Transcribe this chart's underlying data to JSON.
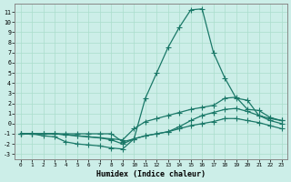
{
  "xlabel": "Humidex (Indice chaleur)",
  "background_color": "#cceee8",
  "grid_color": "#aaddcc",
  "line_color": "#1a7868",
  "xlim": [
    -0.5,
    23.5
  ],
  "ylim": [
    -3.5,
    11.8
  ],
  "xticks": [
    0,
    1,
    2,
    3,
    4,
    5,
    6,
    7,
    8,
    9,
    10,
    11,
    12,
    13,
    14,
    15,
    16,
    17,
    18,
    19,
    20,
    21,
    22,
    23
  ],
  "yticks": [
    -3,
    -2,
    -1,
    0,
    1,
    2,
    3,
    4,
    5,
    6,
    7,
    8,
    9,
    10,
    11
  ],
  "line1_x": [
    0,
    1,
    2,
    3,
    4,
    5,
    6,
    7,
    8,
    9,
    10,
    11,
    12,
    13,
    14,
    15,
    16,
    17,
    18,
    19,
    20,
    21,
    22,
    23
  ],
  "line1_y": [
    -1,
    -1,
    -1.2,
    -1.3,
    -1.8,
    -2.0,
    -2.1,
    -2.2,
    -2.4,
    -2.5,
    -1.5,
    2.5,
    5,
    7.5,
    9.5,
    11.2,
    11.3,
    7,
    4.5,
    2.5,
    2.3,
    0.8,
    0.5,
    0.3
  ],
  "line2_x": [
    0,
    1,
    2,
    3,
    4,
    5,
    6,
    7,
    8,
    9,
    10,
    11,
    12,
    13,
    14,
    15,
    16,
    17,
    18,
    19,
    20,
    21,
    22,
    23
  ],
  "line2_y": [
    -1,
    -1,
    -1,
    -1,
    -1.1,
    -1.2,
    -1.3,
    -1.4,
    -1.5,
    -1.6,
    -0.5,
    0.2,
    0.5,
    0.8,
    1.1,
    1.4,
    1.6,
    1.8,
    2.5,
    2.6,
    1.4,
    1.3,
    0.6,
    0.3
  ],
  "line3_x": [
    0,
    1,
    2,
    3,
    4,
    5,
    6,
    7,
    8,
    9,
    10,
    11,
    12,
    13,
    14,
    15,
    16,
    17,
    18,
    19,
    20,
    21,
    22,
    23
  ],
  "line3_y": [
    -1,
    -1,
    -1,
    -1,
    -1.1,
    -1.2,
    -1.3,
    -1.4,
    -1.6,
    -2.0,
    -1.5,
    -1.2,
    -1.0,
    -0.8,
    -0.3,
    0.3,
    0.8,
    1.1,
    1.4,
    1.5,
    1.2,
    0.8,
    0.3,
    0.0
  ],
  "line4_x": [
    0,
    1,
    2,
    3,
    4,
    5,
    6,
    7,
    8,
    9,
    10,
    11,
    12,
    13,
    14,
    15,
    16,
    17,
    18,
    19,
    20,
    21,
    22,
    23
  ],
  "line4_y": [
    -1,
    -1,
    -1,
    -1,
    -1,
    -1,
    -1,
    -1,
    -1,
    -1.8,
    -1.5,
    -1.2,
    -1.0,
    -0.8,
    -0.5,
    -0.2,
    0.0,
    0.2,
    0.5,
    0.5,
    0.3,
    0.1,
    -0.2,
    -0.5
  ]
}
